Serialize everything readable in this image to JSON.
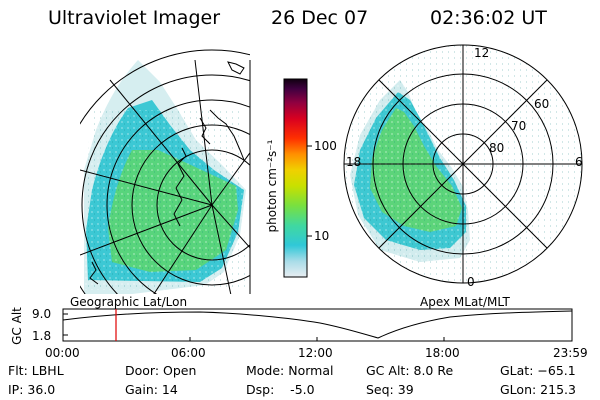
{
  "header": {
    "instrument": "Ultraviolet Imager",
    "date": "26 Dec 07",
    "time": "02:36:02 UT"
  },
  "left_panel": {
    "caption": "Geographic Lat/Lon"
  },
  "right_panel": {
    "caption": "Apex MLat/MLT",
    "lat_labels": [
      "80",
      "70",
      "60"
    ],
    "mlt_labels": [
      "12",
      "18",
      "6",
      "0"
    ]
  },
  "colorbar": {
    "unit": "photon cm⁻²s⁻¹",
    "ticks": [
      "100",
      "10"
    ],
    "scale": "log",
    "colors": [
      "#e8eef2",
      "#a8dce8",
      "#30c8d8",
      "#40d8a0",
      "#78e040",
      "#c8e000",
      "#f0d000",
      "#ff9000",
      "#ff3000",
      "#d80020",
      "#900040",
      "#400040",
      "#100010"
    ]
  },
  "altitude_plot": {
    "ylabel": "GC Alt",
    "y_ticks": [
      "9.0",
      "1.8"
    ],
    "x_ticks": [
      "00:00",
      "06:00",
      "12:00",
      "18:00",
      "23:59"
    ],
    "marker_time": "02:36",
    "marker_color": "#e00000"
  },
  "info": {
    "flt": "Flt: LBHL",
    "ip": "IP: 36.0",
    "door": "Door: Open",
    "gain": "Gain: 14",
    "mode": "Mode: Normal",
    "dsp": "Dsp:    -5.0",
    "gc_alt": "GC Alt: 8.0 Re",
    "seq": "Seq: 39",
    "glat": "GLat: −65.1",
    "glon": "GLon: 215.3"
  }
}
